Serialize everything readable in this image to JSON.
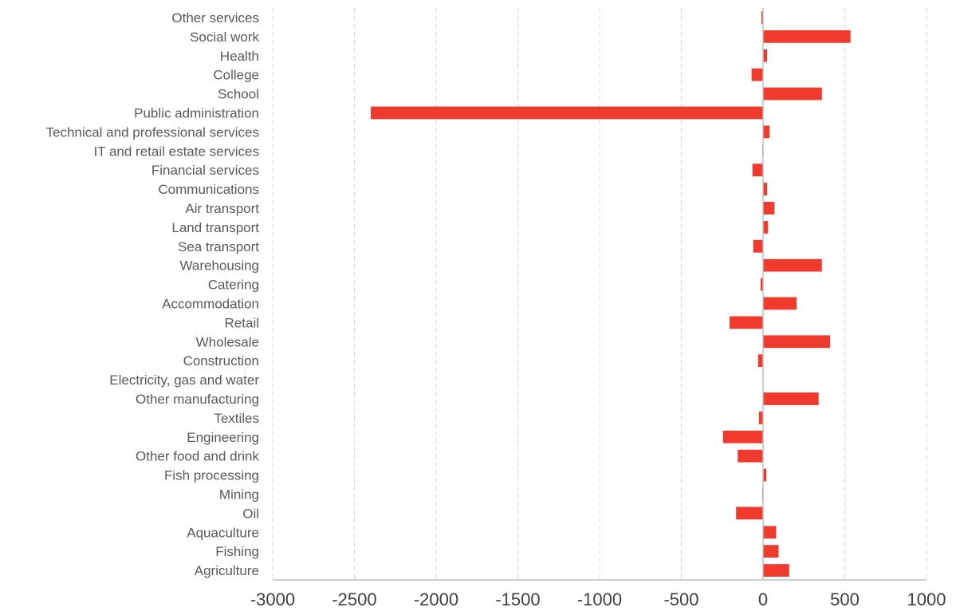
{
  "chart_data": {
    "type": "bar",
    "orientation": "horizontal",
    "title": "",
    "xlabel": "",
    "ylabel": "",
    "categories": [
      "Other services",
      "Social work",
      "Health",
      "College",
      "School",
      "Public administration",
      "Technical and professional services",
      "IT and retail estate services",
      "Financial services",
      "Communications",
      "Air transport",
      "Land transport",
      "Sea transport",
      "Warehousing ",
      "Catering",
      "Accommodation",
      "Retail",
      "Wholesale",
      "Construction",
      "Electricity, gas and water",
      "Other manufacturing",
      "Textiles",
      "Engineering",
      "Other food and drink",
      "Fish processing",
      "Mining",
      "Oil",
      "Aquaculture",
      "Fishing",
      "Agriculture"
    ],
    "values": [
      -10,
      535,
      25,
      -70,
      360,
      -2400,
      40,
      -5,
      -65,
      25,
      70,
      30,
      -60,
      360,
      -15,
      205,
      -205,
      410,
      -30,
      0,
      340,
      -25,
      -245,
      -155,
      20,
      -5,
      -165,
      80,
      95,
      160
    ],
    "xlim": [
      -3000,
      1000
    ],
    "xticks": [
      -3000,
      -2500,
      -2000,
      -1500,
      -1000,
      -500,
      0,
      500,
      1000
    ],
    "grid": "vertical dashed",
    "legend": "none",
    "bar_color": "#f03a2e"
  }
}
